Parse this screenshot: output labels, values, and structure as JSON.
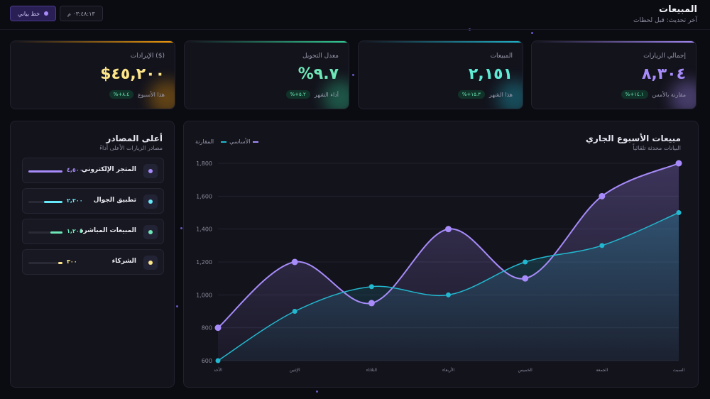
{
  "header": {
    "title": "المبيعات",
    "subtitle": "آخر تحديث: قبل لحظات",
    "time": "٠٣:٤٨:١٣ م",
    "theme_button": "خط بياني"
  },
  "colors": {
    "accent": "#a78bfa",
    "teal": "#22b8cf",
    "green": "#6ee7b7",
    "yellow": "#fde68a"
  },
  "stats": [
    {
      "label": "إجمالي الزيارات",
      "value": "٨,٣٠٤",
      "badge": "%+١٤.١",
      "note": "مقارنة بالأمس",
      "color": "#a78bfa"
    },
    {
      "label": "المبيعات",
      "value": "٢,١٥١",
      "badge": "%+١٥.٣",
      "note": "هذا الشهر",
      "color": "#5eead4"
    },
    {
      "label": "معدل التحويل",
      "value": "%٩.٧",
      "badge": "%+٥.٢",
      "note": "أداء الشهر",
      "color": "#6ee7b7"
    },
    {
      "label": "الإيرادات ($)",
      "value": "$٤٥,٢٠٠",
      "badge": "%+٨.٤",
      "note": "هذا الأسبوع",
      "color": "#fde68a"
    }
  ],
  "sources": {
    "title": "أعلى المصادر",
    "subtitle": "مصادر الزيارات الأعلى أداءً",
    "items": [
      {
        "name": "المتجر الإلكتروني",
        "value": "٤,٥٠٠",
        "share": 1.0,
        "color": "#a78bfa"
      },
      {
        "name": "تطبيق الجوال",
        "value": "٢,٢٠٠",
        "share": 0.55,
        "color": "#67e8f9"
      },
      {
        "name": "المبيعات المباشرة",
        "value": "١,٢٠٤",
        "share": 0.35,
        "color": "#6ee7b7"
      },
      {
        "name": "الشركاء",
        "value": "٣٠٠",
        "share": 0.12,
        "color": "#fde68a"
      }
    ]
  },
  "chart_panel": {
    "title": "مبيعات الأسبوع الجاري",
    "subtitle": "البيانات محدثة تلقائياً",
    "legend_base": "الأساسي",
    "legend_compare": "المقارنة"
  },
  "chart_data": {
    "type": "area",
    "categories": [
      "الأحد",
      "الإثنين",
      "الثلاثاء",
      "الأربعاء",
      "الخميس",
      "الجمعة",
      "السبت"
    ],
    "ylim": [
      600,
      1800
    ],
    "yticks": [
      "600",
      "800",
      "1,000",
      "1,200",
      "1,400",
      "1,600",
      "1,800"
    ],
    "grid": true,
    "series": [
      {
        "name": "المقارنة",
        "values": [
          800,
          1200,
          950,
          1400,
          1100,
          1600,
          1800
        ],
        "color": "#a78bfa"
      },
      {
        "name": "الأساسي",
        "values": [
          600,
          900,
          1050,
          1000,
          1200,
          1300,
          1500
        ],
        "color": "#22b8cf"
      }
    ]
  }
}
